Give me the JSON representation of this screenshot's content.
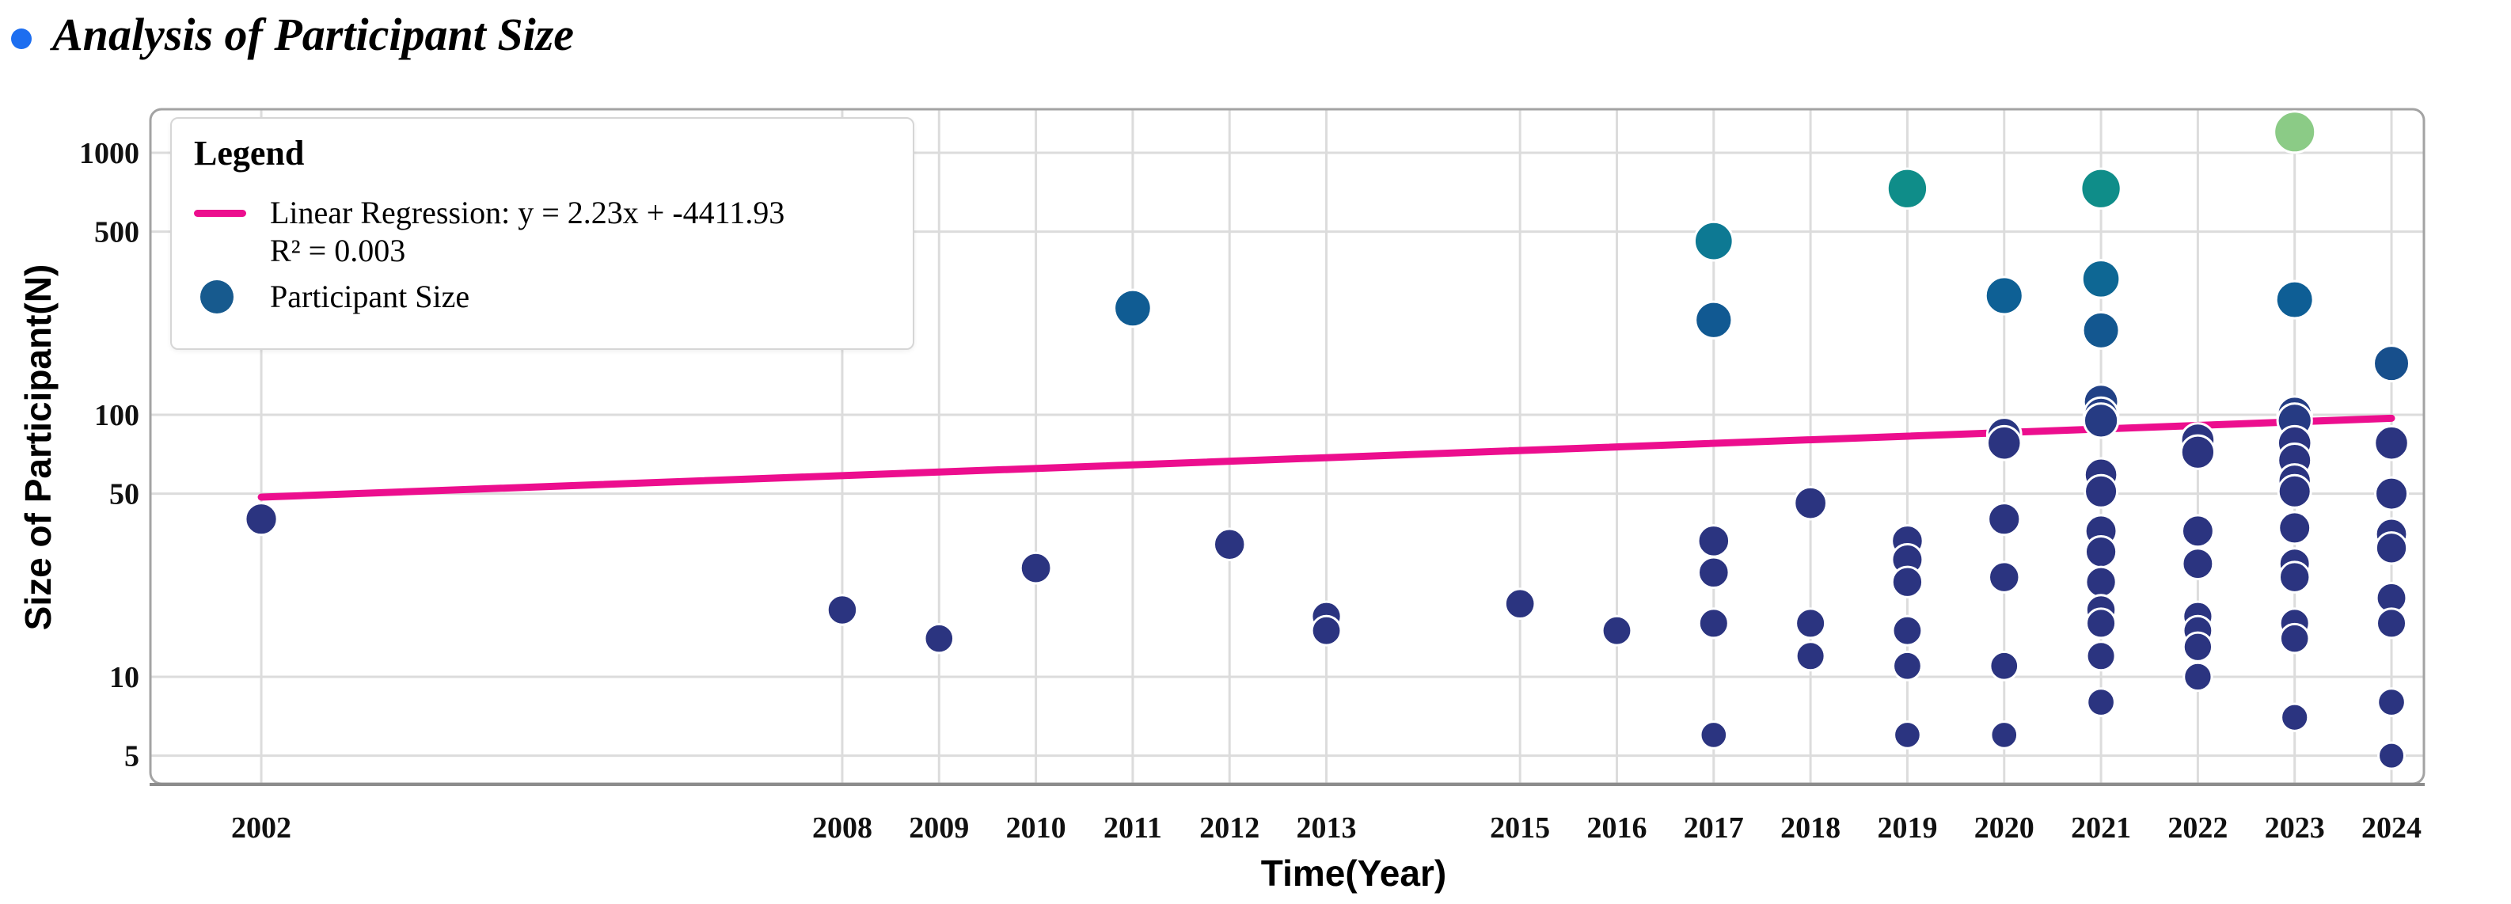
{
  "page": {
    "title": "Analysis of Participant Size",
    "title_bullet_color": "#1d6ef0"
  },
  "legend": {
    "header": "Legend",
    "regression_label": "Linear Regression: y = 2.23x + -4411.93",
    "r2_label": "R² = 0.003",
    "points_label": "Participant Size",
    "line_swatch_color": "#ec0e8e",
    "dot_swatch_color": "#175a8e"
  },
  "chart_data": {
    "type": "scatter",
    "title": "Analysis of Participant Size",
    "xlabel": "Time(Year)",
    "ylabel": "Size of Participant(N)",
    "x_scale": "linear",
    "y_scale": "log",
    "grid": true,
    "legend_position": "upper-left",
    "x_ticks": [
      2002,
      2008,
      2009,
      2010,
      2011,
      2012,
      2013,
      2015,
      2016,
      2017,
      2018,
      2019,
      2020,
      2021,
      2022,
      2023,
      2024
    ],
    "y_ticks": [
      5,
      10,
      50,
      100,
      500,
      1000
    ],
    "x_range": [
      2000.855,
      2024.335
    ],
    "y_range": [
      3.909,
      1466
    ],
    "points": [
      {
        "x": 2002,
        "y": 40
      },
      {
        "x": 2008,
        "y": 18
      },
      {
        "x": 2009,
        "y": 14
      },
      {
        "x": 2010,
        "y": 26
      },
      {
        "x": 2011,
        "y": 255
      },
      {
        "x": 2012,
        "y": 32
      },
      {
        "x": 2013,
        "y": 17
      },
      {
        "x": 2013,
        "y": 15
      },
      {
        "x": 2015,
        "y": 19
      },
      {
        "x": 2016,
        "y": 15
      },
      {
        "x": 2017,
        "y": 460
      },
      {
        "x": 2017,
        "y": 230
      },
      {
        "x": 2017,
        "y": 33
      },
      {
        "x": 2017,
        "y": 25
      },
      {
        "x": 2017,
        "y": 16
      },
      {
        "x": 2017,
        "y": 6
      },
      {
        "x": 2018,
        "y": 46
      },
      {
        "x": 2018,
        "y": 16
      },
      {
        "x": 2018,
        "y": 12
      },
      {
        "x": 2019,
        "y": 730
      },
      {
        "x": 2019,
        "y": 33
      },
      {
        "x": 2019,
        "y": 28
      },
      {
        "x": 2019,
        "y": 23
      },
      {
        "x": 2019,
        "y": 15
      },
      {
        "x": 2019,
        "y": 11
      },
      {
        "x": 2019,
        "y": 6
      },
      {
        "x": 2020,
        "y": 285
      },
      {
        "x": 2020,
        "y": 84
      },
      {
        "x": 2020,
        "y": 78
      },
      {
        "x": 2020,
        "y": 40
      },
      {
        "x": 2020,
        "y": 24
      },
      {
        "x": 2020,
        "y": 11
      },
      {
        "x": 2020,
        "y": 6
      },
      {
        "x": 2021,
        "y": 730
      },
      {
        "x": 2021,
        "y": 330
      },
      {
        "x": 2021,
        "y": 210
      },
      {
        "x": 2021,
        "y": 112
      },
      {
        "x": 2021,
        "y": 100
      },
      {
        "x": 2021,
        "y": 95
      },
      {
        "x": 2021,
        "y": 59
      },
      {
        "x": 2021,
        "y": 51
      },
      {
        "x": 2021,
        "y": 36
      },
      {
        "x": 2021,
        "y": 30
      },
      {
        "x": 2021,
        "y": 23
      },
      {
        "x": 2021,
        "y": 18
      },
      {
        "x": 2021,
        "y": 16
      },
      {
        "x": 2021,
        "y": 12
      },
      {
        "x": 2021,
        "y": 8
      },
      {
        "x": 2022,
        "y": 80
      },
      {
        "x": 2022,
        "y": 72
      },
      {
        "x": 2022,
        "y": 36
      },
      {
        "x": 2022,
        "y": 27
      },
      {
        "x": 2022,
        "y": 17
      },
      {
        "x": 2022,
        "y": 15
      },
      {
        "x": 2022,
        "y": 13
      },
      {
        "x": 2022,
        "y": 10
      },
      {
        "x": 2023,
        "y": 1200
      },
      {
        "x": 2023,
        "y": 275
      },
      {
        "x": 2023,
        "y": 101
      },
      {
        "x": 2023,
        "y": 95
      },
      {
        "x": 2023,
        "y": 78
      },
      {
        "x": 2023,
        "y": 67
      },
      {
        "x": 2023,
        "y": 56
      },
      {
        "x": 2023,
        "y": 51
      },
      {
        "x": 2023,
        "y": 37
      },
      {
        "x": 2023,
        "y": 27
      },
      {
        "x": 2023,
        "y": 24
      },
      {
        "x": 2023,
        "y": 16
      },
      {
        "x": 2023,
        "y": 14
      },
      {
        "x": 2023,
        "y": 7
      },
      {
        "x": 2024,
        "y": 157
      },
      {
        "x": 2024,
        "y": 78
      },
      {
        "x": 2024,
        "y": 50
      },
      {
        "x": 2024,
        "y": 35
      },
      {
        "x": 2024,
        "y": 31
      },
      {
        "x": 2024,
        "y": 20
      },
      {
        "x": 2024,
        "y": 16
      },
      {
        "x": 2024,
        "y": 8
      },
      {
        "x": 2024,
        "y": 5
      }
    ],
    "regression": {
      "slope": 2.23,
      "intercept": -4411.93,
      "r2": 0.003,
      "x_start": 2002,
      "x_end": 2024,
      "y_at_start": 48.5,
      "y_at_end": 97.0,
      "color": "#ec0e8e"
    },
    "point_style": {
      "stroke": "#ffffff",
      "color_stops": [
        [
          1.9,
          "#2b3480"
        ],
        [
          2.2,
          "#174f8c"
        ],
        [
          2.45,
          "#0e5f95"
        ],
        [
          2.7,
          "#0d7d93"
        ],
        [
          2.9,
          "#0f9187"
        ],
        [
          3.08,
          "#8ccb86"
        ]
      ],
      "radius_base": 13.7,
      "radius_per_log10": 4.0
    },
    "frame_color": "#a3a3a3",
    "grid_color": "#dcdcdc",
    "tick_color": "#111111"
  }
}
